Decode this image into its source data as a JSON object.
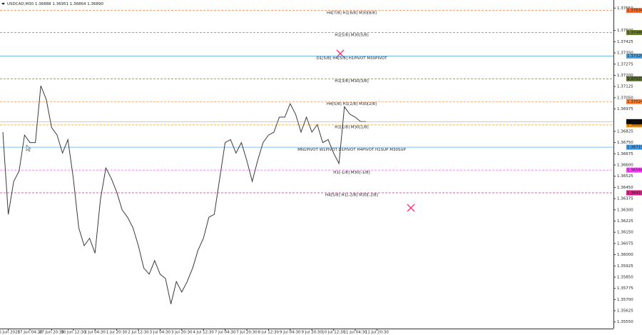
{
  "chart_data": {
    "type": "line",
    "title": "USDCAD,M30  1.36888 1.36951 1.36864 1.36890",
    "categories": [
      null,
      "26 Jun 2025",
      null,
      null,
      null,
      "27 Jun 04:30",
      null,
      null,
      null,
      "27 Jun 20:30",
      null,
      null,
      null,
      "30 Jun 12:30",
      null,
      null,
      null,
      "1 Jul 04:30",
      null,
      null,
      null,
      "1 Jul 20:30",
      null,
      null,
      null,
      "2 Jul 12:30",
      null,
      null,
      null,
      "3 Jul 04:30",
      null,
      null,
      null,
      "3 Jul 20:30",
      null,
      null,
      null,
      "4 Jul 12:30",
      null,
      null,
      null,
      "7 Jul 04:30",
      null,
      null,
      null,
      "7 Jul 20:30",
      null,
      null,
      null,
      "8 Jul 12:30",
      null,
      null,
      null,
      "9 Jul 04:30",
      null,
      null,
      null,
      "9 Jul 20:30",
      null,
      null,
      null,
      "10 Jul 12:30",
      null,
      null,
      null,
      "11 Jul 04:30",
      null,
      null,
      null,
      "11 Jul 20:30",
      null,
      null
    ],
    "series": [
      {
        "name": "USDCAD,M30",
        "color": "#3a3a3a",
        "values": [
          1.3682,
          1.3627,
          1.3649,
          1.3656,
          1.368,
          1.3675,
          1.3675,
          1.3713,
          1.3704,
          1.3685,
          1.368,
          1.3668,
          1.3677,
          1.3651,
          1.3618,
          1.3606,
          1.3611,
          1.3601,
          1.3637,
          1.3658,
          1.3651,
          1.3642,
          1.363,
          1.3625,
          1.3618,
          1.3606,
          1.3591,
          1.3587,
          1.3596,
          1.3587,
          1.3584,
          1.3567,
          1.3582,
          1.3575,
          1.3582,
          1.3591,
          1.3603,
          1.3611,
          1.3625,
          1.3627,
          1.3651,
          1.3675,
          1.3677,
          1.3668,
          1.3675,
          1.3663,
          1.3649,
          1.3663,
          1.3675,
          1.368,
          1.3682,
          1.3692,
          1.3692,
          1.3701,
          1.3694,
          1.3682,
          1.3692,
          1.3682,
          1.3687,
          1.3675,
          1.3677,
          1.3668,
          1.3661,
          1.3699,
          1.3694,
          1.3692,
          1.3689,
          1.3689,
          null,
          null,
          null,
          null
        ]
      }
    ],
    "ylim": [
      1.3552,
      1.3768
    ],
    "yticks": [
      {
        "value": 1.3765,
        "label": "1.37650"
      },
      {
        "value": 1.375,
        "label": "1.37500"
      },
      {
        "value": 1.37425,
        "label": "1.37425"
      },
      {
        "value": 1.3735,
        "label": "1.37350"
      },
      {
        "value": 1.37275,
        "label": "1.37275"
      },
      {
        "value": 1.372,
        "label": "1.37200"
      },
      {
        "value": 1.37125,
        "label": "1.37125"
      },
      {
        "value": 1.3705,
        "label": "1.37050"
      },
      {
        "value": 1.36975,
        "label": "1.36975"
      },
      {
        "value": 1.36825,
        "label": "1.36825"
      },
      {
        "value": 1.3675,
        "label": "1.36750"
      },
      {
        "value": 1.36675,
        "label": "1.36675"
      },
      {
        "value": 1.366,
        "label": "1.36600"
      },
      {
        "value": 1.36525,
        "label": "1.36525"
      },
      {
        "value": 1.3645,
        "label": "1.36450"
      },
      {
        "value": 1.36375,
        "label": "1.36375"
      },
      {
        "value": 1.363,
        "label": "1.36300"
      },
      {
        "value": 1.36225,
        "label": "1.36225"
      },
      {
        "value": 1.3615,
        "label": "1.36150"
      },
      {
        "value": 1.36075,
        "label": "1.36075"
      },
      {
        "value": 1.36,
        "label": "1.36000"
      },
      {
        "value": 1.35925,
        "label": "1.35925"
      },
      {
        "value": 1.3585,
        "label": "1.35850"
      },
      {
        "value": 1.35775,
        "label": "1.35775"
      },
      {
        "value": 1.357,
        "label": "1.35700"
      },
      {
        "value": 1.35625,
        "label": "1.35625"
      },
      {
        "value": 1.3555,
        "label": "1.35550"
      }
    ],
    "levels": [
      {
        "name": "H4[7/8] H1[8/8] M30[8/8]",
        "value": 1.37634,
        "color": "#ff6a2a"
      },
      {
        "name": "H1[5/8] M30[5/8]",
        "value": 1.37486,
        "color": "#6b7b2b"
      },
      {
        "name": "D1[5/8] H4[5/8] H1PIVOT M30PIVOT",
        "value": 1.37329,
        "color": "#4aa3df"
      },
      {
        "name": "H1[3/8] M30[3/8]",
        "value": 1.37177,
        "color": "#556b2f"
      },
      {
        "name": "H4[5/8] H1[2/8] M30[2/8]",
        "value": 1.37024,
        "color": "#ff7f2a"
      },
      {
        "name": "H1[1/8] M30[1/8]",
        "value": 1.36868,
        "color": "#ff9a00"
      },
      {
        "name": "MN1PIVOT W1PIVOT D1PIVOT H4PIVOT H1SUP M30SUP",
        "value": 1.36719,
        "color": "#3d9be9"
      },
      {
        "name": "H1[-1/8] M30[-1/8]",
        "value": 1.36566,
        "color": "#ff40ff"
      },
      {
        "name": "H4[5/8] H1[-2/8] M30[-2/8]",
        "value": 1.36414,
        "color": "#e0208a"
      }
    ],
    "current_price": {
      "value": 1.3689,
      "label": "1.36890"
    }
  }
}
